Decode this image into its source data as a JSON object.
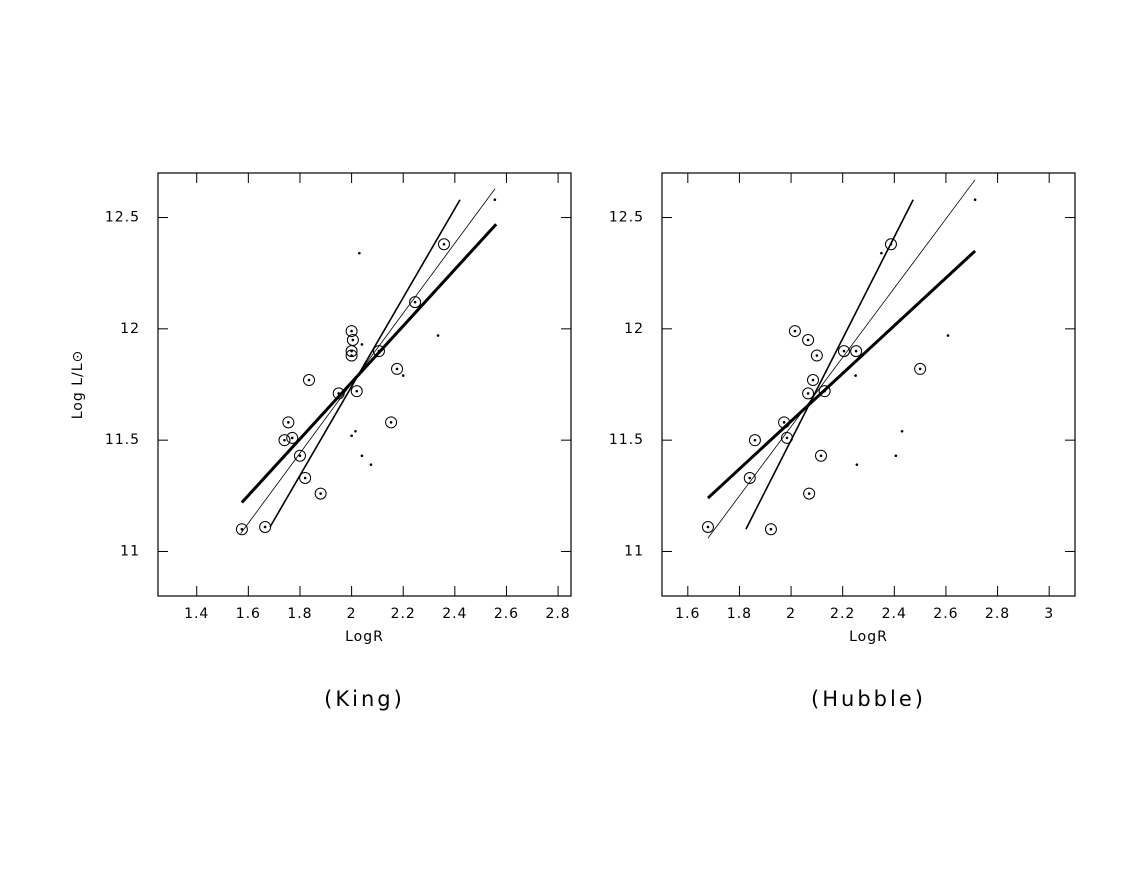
{
  "chart_data": [
    {
      "type": "scatter",
      "caption": "(King)",
      "x_label": "LogR",
      "y_label": "Log L/L⊙",
      "xlim": [
        1.25,
        2.85
      ],
      "ylim": [
        10.8,
        12.7
      ],
      "xticks": [
        1.4,
        1.6,
        1.8,
        2,
        2.2,
        2.4,
        2.6,
        2.8
      ],
      "yticks": [
        11,
        11.5,
        12,
        12.5
      ],
      "series": [
        {
          "marker": "circled",
          "color": "#000000",
          "x": [
            1.575,
            1.665,
            1.74,
            1.755,
            1.77,
            1.8,
            1.82,
            1.835,
            1.88,
            1.95,
            2.0,
            2.005,
            2.0,
            2.0,
            2.106,
            2.02,
            2.153,
            2.176,
            2.246,
            2.358
          ],
          "y": [
            11.1,
            11.11,
            11.5,
            11.58,
            11.51,
            11.43,
            11.33,
            11.77,
            11.26,
            11.71,
            11.99,
            11.95,
            11.9,
            11.88,
            11.9,
            11.72,
            11.58,
            11.82,
            12.12,
            12.38
          ]
        },
        {
          "marker": "dot",
          "color": "#000000",
          "x": [
            2.03,
            2.04,
            2.0,
            2.015,
            2.04,
            2.075,
            2.2,
            2.335,
            2.555
          ],
          "y": [
            12.34,
            11.93,
            11.52,
            11.54,
            11.43,
            11.39,
            11.79,
            11.97,
            12.58
          ]
        }
      ],
      "lines": [
        {
          "width": 3,
          "x": [
            1.575,
            2.56
          ],
          "y": [
            11.22,
            12.47
          ]
        },
        {
          "width": 1.6,
          "x": [
            1.684,
            2.42
          ],
          "y": [
            11.11,
            12.58
          ]
        },
        {
          "width": 0.8,
          "x": [
            1.57,
            2.556
          ],
          "y": [
            11.08,
            12.63
          ]
        }
      ]
    },
    {
      "type": "scatter",
      "caption": "(Hubble)",
      "x_label": "LogR",
      "xlim": [
        1.5,
        3.1
      ],
      "ylim": [
        10.8,
        12.7
      ],
      "xticks": [
        1.6,
        1.8,
        2,
        2.2,
        2.4,
        2.6,
        2.8,
        3
      ],
      "yticks": [
        11,
        11.5,
        12,
        12.5
      ],
      "series": [
        {
          "marker": "circled",
          "color": "#000000",
          "x": [
            1.678,
            1.84,
            1.86,
            1.922,
            1.973,
            1.984,
            2.015,
            2.066,
            2.066,
            2.07,
            2.085,
            2.1,
            2.116,
            2.13,
            2.205,
            2.252,
            2.387,
            2.5
          ],
          "y": [
            11.11,
            11.33,
            11.5,
            11.1,
            11.58,
            11.51,
            11.99,
            11.95,
            11.71,
            11.26,
            11.77,
            11.88,
            11.43,
            11.72,
            11.9,
            11.9,
            12.38,
            11.82
          ]
        },
        {
          "marker": "dot",
          "color": "#000000",
          "x": [
            2.25,
            2.35,
            2.43,
            2.406,
            2.255,
            2.608,
            2.713
          ],
          "y": [
            11.79,
            12.34,
            11.54,
            11.43,
            11.39,
            11.97,
            12.58
          ]
        }
      ],
      "lines": [
        {
          "width": 3,
          "x": [
            1.678,
            2.713
          ],
          "y": [
            11.24,
            12.35
          ]
        },
        {
          "width": 1.6,
          "x": [
            1.825,
            2.473
          ],
          "y": [
            11.1,
            12.58
          ]
        },
        {
          "width": 0.8,
          "x": [
            1.678,
            2.713
          ],
          "y": [
            11.06,
            12.67
          ]
        }
      ]
    }
  ]
}
